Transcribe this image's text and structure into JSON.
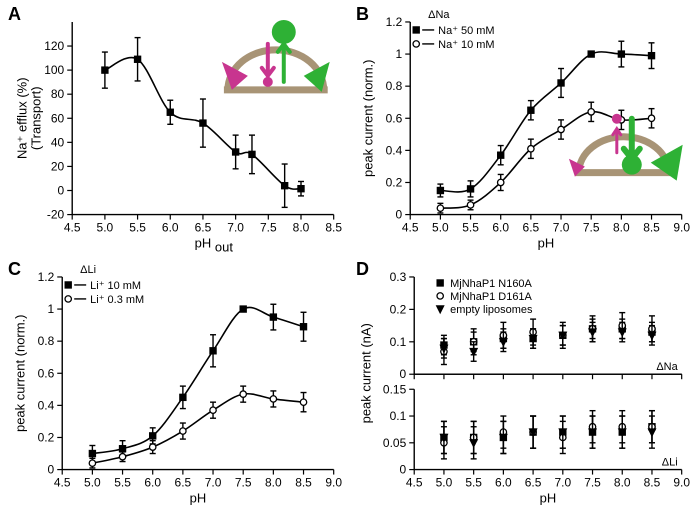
{
  "panelA": {
    "label": "A",
    "type": "scatter+curve",
    "xlabel": "pH",
    "xlabel_sub": "out",
    "ylabel_l1": "Na⁺ efflux (%)",
    "ylabel_l2": "(Transport)",
    "xlim": [
      4.5,
      8.5
    ],
    "ylim": [
      -20,
      140
    ],
    "xticks": [
      4.5,
      5.0,
      5.5,
      6.0,
      6.5,
      7.0,
      7.5,
      8.0,
      8.5
    ],
    "yticks": [
      -20,
      0,
      20,
      40,
      60,
      80,
      100,
      120
    ],
    "label_fontsize": 13,
    "tick_fontsize": 12,
    "marker": "square-filled",
    "marker_color": "#000000",
    "points": [
      {
        "x": 5.0,
        "y": 100,
        "err": 15
      },
      {
        "x": 5.5,
        "y": 109,
        "err": 18
      },
      {
        "x": 6.0,
        "y": 65,
        "err": 10
      },
      {
        "x": 6.5,
        "y": 56,
        "err": 20
      },
      {
        "x": 7.0,
        "y": 32,
        "err": 14
      },
      {
        "x": 7.25,
        "y": 30,
        "err": 16
      },
      {
        "x": 7.75,
        "y": 4,
        "err": 18
      },
      {
        "x": 8.0,
        "y": 1.5,
        "err": 6
      }
    ],
    "curve_color": "#000000",
    "background_color": "#ffffff",
    "inset": {
      "dome_color": "#a89476",
      "arrow_out_color": "#2eb135",
      "arrow_in_color": "#c8358f",
      "big_circle_color": "#2eb135",
      "small_circle_color": "#c8358f",
      "left_triangle_color": "#c8358f",
      "right_triangle_color": "#2eb135"
    }
  },
  "panelB": {
    "label": "B",
    "type": "scatter+curve",
    "title": "ΔNa",
    "xlabel": "pH",
    "ylabel": "peak current (norm.)",
    "xlim": [
      4.5,
      9.0
    ],
    "ylim": [
      0.0,
      1.2
    ],
    "xticks": [
      4.5,
      5.0,
      5.5,
      6.0,
      6.5,
      7.0,
      7.5,
      8.0,
      8.5,
      9.0
    ],
    "yticks": [
      0.0,
      0.2,
      0.4,
      0.6,
      0.8,
      1.0,
      1.2
    ],
    "label_fontsize": 13,
    "tick_fontsize": 12,
    "series": [
      {
        "name": "Na⁺ 50 mM",
        "marker": "square-filled",
        "marker_color": "#000000",
        "points": [
          {
            "x": 5.0,
            "y": 0.15,
            "err": 0.04
          },
          {
            "x": 5.5,
            "y": 0.16,
            "err": 0.05
          },
          {
            "x": 6.0,
            "y": 0.37,
            "err": 0.06
          },
          {
            "x": 6.5,
            "y": 0.65,
            "err": 0.06
          },
          {
            "x": 7.0,
            "y": 0.82,
            "err": 0.09
          },
          {
            "x": 7.5,
            "y": 1.0,
            "err": 0.0
          },
          {
            "x": 8.0,
            "y": 1.0,
            "err": 0.08
          },
          {
            "x": 8.5,
            "y": 0.99,
            "err": 0.08
          }
        ]
      },
      {
        "name": "Na⁺ 10 mM",
        "marker": "circle-open",
        "marker_color": "#000000",
        "points": [
          {
            "x": 5.0,
            "y": 0.04,
            "err": 0.03
          },
          {
            "x": 5.5,
            "y": 0.06,
            "err": 0.03
          },
          {
            "x": 6.0,
            "y": 0.2,
            "err": 0.05
          },
          {
            "x": 6.5,
            "y": 0.41,
            "err": 0.06
          },
          {
            "x": 7.0,
            "y": 0.53,
            "err": 0.06
          },
          {
            "x": 7.5,
            "y": 0.64,
            "err": 0.06
          },
          {
            "x": 8.0,
            "y": 0.59,
            "err": 0.06
          },
          {
            "x": 8.5,
            "y": 0.6,
            "err": 0.06
          }
        ]
      }
    ],
    "inset": {
      "dome_color": "#a89476",
      "big_arrow_color": "#2eb135",
      "small_arrow_color": "#c8358f",
      "big_circle_color": "#2eb135",
      "small_circle_color": "#c8358f",
      "left_triangle_color": "#c8358f",
      "right_triangle_color": "#2eb135"
    }
  },
  "panelC": {
    "label": "C",
    "type": "scatter+curve",
    "title": "ΔLi",
    "xlabel": "pH",
    "ylabel": "peak current (norm.)",
    "xlim": [
      4.5,
      9.0
    ],
    "ylim": [
      0.0,
      1.2
    ],
    "xticks": [
      4.5,
      5.0,
      5.5,
      6.0,
      6.5,
      7.0,
      7.5,
      8.0,
      8.5,
      9.0
    ],
    "yticks": [
      0.0,
      0.2,
      0.4,
      0.6,
      0.8,
      1.0,
      1.2
    ],
    "label_fontsize": 13,
    "tick_fontsize": 12,
    "series": [
      {
        "name": "Li⁺ 10 mM",
        "marker": "square-filled",
        "marker_color": "#000000",
        "points": [
          {
            "x": 5.0,
            "y": 0.1,
            "err": 0.05
          },
          {
            "x": 5.5,
            "y": 0.13,
            "err": 0.05
          },
          {
            "x": 6.0,
            "y": 0.21,
            "err": 0.05
          },
          {
            "x": 6.5,
            "y": 0.45,
            "err": 0.07
          },
          {
            "x": 7.0,
            "y": 0.74,
            "err": 0.1
          },
          {
            "x": 7.5,
            "y": 1.0,
            "err": 0.0
          },
          {
            "x": 8.0,
            "y": 0.95,
            "err": 0.08
          },
          {
            "x": 8.5,
            "y": 0.89,
            "err": 0.09
          }
        ]
      },
      {
        "name": "Li⁺ 0.3 mM",
        "marker": "circle-open",
        "marker_color": "#000000",
        "points": [
          {
            "x": 5.0,
            "y": 0.04,
            "err": 0.03
          },
          {
            "x": 5.5,
            "y": 0.08,
            "err": 0.03
          },
          {
            "x": 6.0,
            "y": 0.14,
            "err": 0.04
          },
          {
            "x": 6.5,
            "y": 0.24,
            "err": 0.05
          },
          {
            "x": 7.0,
            "y": 0.37,
            "err": 0.05
          },
          {
            "x": 7.5,
            "y": 0.47,
            "err": 0.05
          },
          {
            "x": 8.0,
            "y": 0.44,
            "err": 0.05
          },
          {
            "x": 8.5,
            "y": 0.42,
            "err": 0.06
          }
        ]
      }
    ]
  },
  "panelD": {
    "label": "D",
    "type": "scatter",
    "xlabel": "pH",
    "ylabel": "peak current (nA)",
    "xlim": [
      4.5,
      9.0
    ],
    "xticks": [
      4.5,
      5.0,
      5.5,
      6.0,
      6.5,
      7.0,
      7.5,
      8.0,
      8.5,
      9.0
    ],
    "top": {
      "right_label": "ΔNa",
      "ylim": [
        0.0,
        0.3
      ],
      "yticks": [
        0.0,
        0.1,
        0.2,
        0.3
      ],
      "series": [
        {
          "name": "MjNhaP1 N160A",
          "marker": "square-filled",
          "marker_color": "#000000",
          "points": [
            {
              "x": 5.0,
              "y": 0.09,
              "err": 0.03
            },
            {
              "x": 5.5,
              "y": 0.1,
              "err": 0.03
            },
            {
              "x": 6.0,
              "y": 0.11,
              "err": 0.03
            },
            {
              "x": 6.5,
              "y": 0.11,
              "err": 0.03
            },
            {
              "x": 7.0,
              "y": 0.12,
              "err": 0.03
            },
            {
              "x": 7.5,
              "y": 0.14,
              "err": 0.03
            },
            {
              "x": 8.0,
              "y": 0.14,
              "err": 0.03
            },
            {
              "x": 8.5,
              "y": 0.13,
              "err": 0.03
            }
          ]
        },
        {
          "name": "MjNhaP1 D161A",
          "marker": "circle-open",
          "marker_color": "#000000",
          "points": [
            {
              "x": 5.0,
              "y": 0.07,
              "err": 0.04
            },
            {
              "x": 5.5,
              "y": 0.1,
              "err": 0.04
            },
            {
              "x": 6.0,
              "y": 0.12,
              "err": 0.04
            },
            {
              "x": 6.5,
              "y": 0.13,
              "err": 0.04
            },
            {
              "x": 7.0,
              "y": 0.12,
              "err": 0.04
            },
            {
              "x": 7.5,
              "y": 0.14,
              "err": 0.04
            },
            {
              "x": 8.0,
              "y": 0.15,
              "err": 0.04
            },
            {
              "x": 8.5,
              "y": 0.14,
              "err": 0.04
            }
          ]
        },
        {
          "name": "empty liposomes",
          "marker": "triangle-down-filled",
          "marker_color": "#000000",
          "points": [
            {
              "x": 5.0,
              "y": 0.08,
              "err": 0.03
            },
            {
              "x": 5.5,
              "y": 0.07,
              "err": 0.03
            },
            {
              "x": 6.0,
              "y": 0.1,
              "err": 0.03
            },
            {
              "x": 6.5,
              "y": 0.11,
              "err": 0.03
            },
            {
              "x": 7.0,
              "y": 0.12,
              "err": 0.03
            },
            {
              "x": 7.5,
              "y": 0.13,
              "err": 0.03
            },
            {
              "x": 8.0,
              "y": 0.13,
              "err": 0.03
            },
            {
              "x": 8.5,
              "y": 0.12,
              "err": 0.03
            }
          ]
        }
      ]
    },
    "bottom": {
      "right_label": "ΔLi",
      "ylim": [
        0.0,
        0.15
      ],
      "yticks": [
        0.0,
        0.05,
        0.1,
        0.15
      ],
      "series": [
        {
          "marker": "square-filled",
          "points": [
            {
              "x": 5.0,
              "y": 0.06,
              "err": 0.03
            },
            {
              "x": 5.5,
              "y": 0.06,
              "err": 0.03
            },
            {
              "x": 6.0,
              "y": 0.06,
              "err": 0.03
            },
            {
              "x": 6.5,
              "y": 0.07,
              "err": 0.03
            },
            {
              "x": 7.0,
              "y": 0.07,
              "err": 0.03
            },
            {
              "x": 7.5,
              "y": 0.07,
              "err": 0.03
            },
            {
              "x": 8.0,
              "y": 0.07,
              "err": 0.03
            },
            {
              "x": 8.5,
              "y": 0.08,
              "err": 0.03
            }
          ]
        },
        {
          "marker": "circle-open",
          "points": [
            {
              "x": 5.0,
              "y": 0.05,
              "err": 0.03
            },
            {
              "x": 5.5,
              "y": 0.06,
              "err": 0.03
            },
            {
              "x": 6.0,
              "y": 0.07,
              "err": 0.03
            },
            {
              "x": 6.5,
              "y": 0.07,
              "err": 0.03
            },
            {
              "x": 7.0,
              "y": 0.06,
              "err": 0.03
            },
            {
              "x": 7.5,
              "y": 0.08,
              "err": 0.03
            },
            {
              "x": 8.0,
              "y": 0.08,
              "err": 0.03
            },
            {
              "x": 8.5,
              "y": 0.08,
              "err": 0.03
            }
          ]
        },
        {
          "marker": "triangle-down-filled",
          "points": [
            {
              "x": 5.0,
              "y": 0.06,
              "err": 0.03
            },
            {
              "x": 5.5,
              "y": 0.05,
              "err": 0.03
            },
            {
              "x": 6.0,
              "y": 0.06,
              "err": 0.03
            },
            {
              "x": 6.5,
              "y": 0.07,
              "err": 0.03
            },
            {
              "x": 7.0,
              "y": 0.07,
              "err": 0.03
            },
            {
              "x": 7.5,
              "y": 0.07,
              "err": 0.03
            },
            {
              "x": 8.0,
              "y": 0.07,
              "err": 0.03
            },
            {
              "x": 8.5,
              "y": 0.07,
              "err": 0.03
            }
          ]
        }
      ]
    },
    "label_fontsize": 13,
    "tick_fontsize": 12
  }
}
